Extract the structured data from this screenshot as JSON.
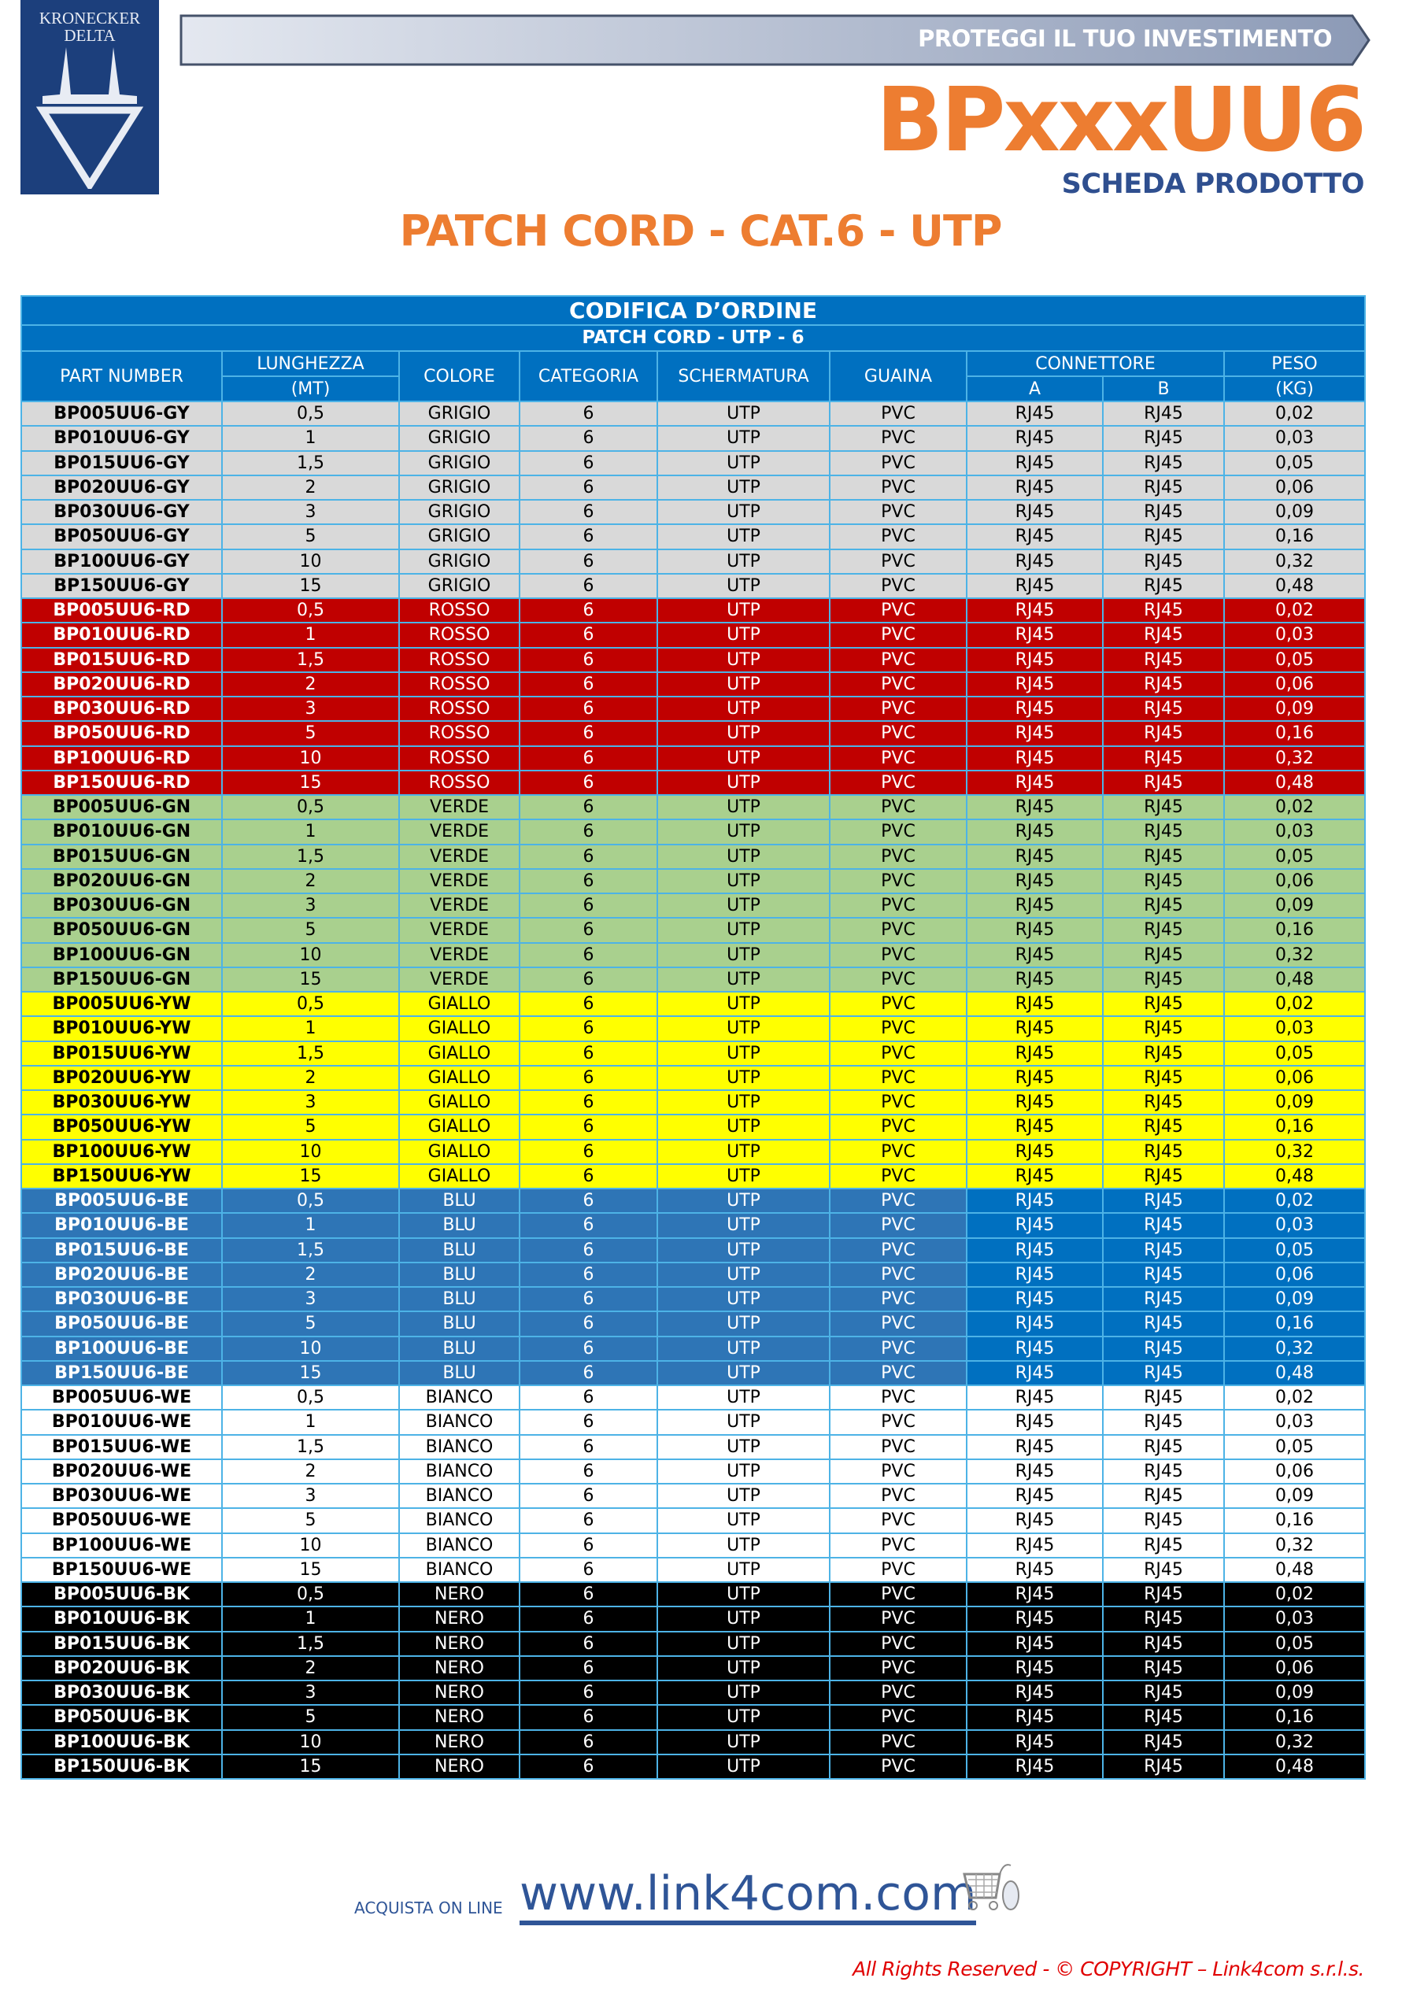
{
  "logo": {
    "line1": "KRONECKER",
    "line2": "DELTA"
  },
  "banner": "PROTEGGI IL TUO INVESTIMENTO",
  "product_code": "BPxxxUU6",
  "subtitle": "SCHEDA PRODOTTO",
  "title": "PATCH CORD - CAT.6 - UTP",
  "table": {
    "caption": "CODIFICA D’ORDINE",
    "subcaption": "PATCH CORD - UTP - 6",
    "headers": {
      "part_number": "PART NUMBER",
      "lunghezza": "LUNGHEZZA",
      "lunghezza_unit": "(MT)",
      "colore": "COLORE",
      "categoria": "CATEGORIA",
      "schermatura": "SCHERMATURA",
      "guaina": "GUAINA",
      "connettore": "CONNETTORE",
      "conn_a": "A",
      "conn_b": "B",
      "peso": "PESO",
      "peso_unit": "(KG)"
    },
    "groups": [
      {
        "colore": "GRIGIO",
        "bg": "#d9d9d9",
        "bg2": "#d9d9d9",
        "fg": "#000000",
        "rows": [
          [
            "BP005UU6-GY",
            "0,5",
            "0,02"
          ],
          [
            "BP010UU6-GY",
            "1",
            "0,03"
          ],
          [
            "BP015UU6-GY",
            "1,5",
            "0,05"
          ],
          [
            "BP020UU6-GY",
            "2",
            "0,06"
          ],
          [
            "BP030UU6-GY",
            "3",
            "0,09"
          ],
          [
            "BP050UU6-GY",
            "5",
            "0,16"
          ],
          [
            "BP100UU6-GY",
            "10",
            "0,32"
          ],
          [
            "BP150UU6-GY",
            "15",
            "0,48"
          ]
        ]
      },
      {
        "colore": "ROSSO",
        "bg": "#c00000",
        "bg2": "#c00000",
        "fg": "#ffffff",
        "rows": [
          [
            "BP005UU6-RD",
            "0,5",
            "0,02"
          ],
          [
            "BP010UU6-RD",
            "1",
            "0,03"
          ],
          [
            "BP015UU6-RD",
            "1,5",
            "0,05"
          ],
          [
            "BP020UU6-RD",
            "2",
            "0,06"
          ],
          [
            "BP030UU6-RD",
            "3",
            "0,09"
          ],
          [
            "BP050UU6-RD",
            "5",
            "0,16"
          ],
          [
            "BP100UU6-RD",
            "10",
            "0,32"
          ],
          [
            "BP150UU6-RD",
            "15",
            "0,48"
          ]
        ]
      },
      {
        "colore": "VERDE",
        "bg": "#a9d08e",
        "bg2": "#a9d08e",
        "fg": "#000000",
        "rows": [
          [
            "BP005UU6-GN",
            "0,5",
            "0,02"
          ],
          [
            "BP010UU6-GN",
            "1",
            "0,03"
          ],
          [
            "BP015UU6-GN",
            "1,5",
            "0,05"
          ],
          [
            "BP020UU6-GN",
            "2",
            "0,06"
          ],
          [
            "BP030UU6-GN",
            "3",
            "0,09"
          ],
          [
            "BP050UU6-GN",
            "5",
            "0,16"
          ],
          [
            "BP100UU6-GN",
            "10",
            "0,32"
          ],
          [
            "BP150UU6-GN",
            "15",
            "0,48"
          ]
        ]
      },
      {
        "colore": "GIALLO",
        "bg": "#ffff00",
        "bg2": "#ffff00",
        "fg": "#000000",
        "rows": [
          [
            "BP005UU6-YW",
            "0,5",
            "0,02"
          ],
          [
            "BP010UU6-YW",
            "1",
            "0,03"
          ],
          [
            "BP015UU6-YW",
            "1,5",
            "0,05"
          ],
          [
            "BP020UU6-YW",
            "2",
            "0,06"
          ],
          [
            "BP030UU6-YW",
            "3",
            "0,09"
          ],
          [
            "BP050UU6-YW",
            "5",
            "0,16"
          ],
          [
            "BP100UU6-YW",
            "10",
            "0,32"
          ],
          [
            "BP150UU6-YW",
            "15",
            "0,48"
          ]
        ]
      },
      {
        "colore": "BLU",
        "bg": "#2e75b6",
        "bg2": "#0070c0",
        "fg": "#ffffff",
        "rows": [
          [
            "BP005UU6-BE",
            "0,5",
            "0,02"
          ],
          [
            "BP010UU6-BE",
            "1",
            "0,03"
          ],
          [
            "BP015UU6-BE",
            "1,5",
            "0,05"
          ],
          [
            "BP020UU6-BE",
            "2",
            "0,06"
          ],
          [
            "BP030UU6-BE",
            "3",
            "0,09"
          ],
          [
            "BP050UU6-BE",
            "5",
            "0,16"
          ],
          [
            "BP100UU6-BE",
            "10",
            "0,32"
          ],
          [
            "BP150UU6-BE",
            "15",
            "0,48"
          ]
        ]
      },
      {
        "colore": "BIANCO",
        "bg": "#ffffff",
        "bg2": "#ffffff",
        "fg": "#000000",
        "rows": [
          [
            "BP005UU6-WE",
            "0,5",
            "0,02"
          ],
          [
            "BP010UU6-WE",
            "1",
            "0,03"
          ],
          [
            "BP015UU6-WE",
            "1,5",
            "0,05"
          ],
          [
            "BP020UU6-WE",
            "2",
            "0,06"
          ],
          [
            "BP030UU6-WE",
            "3",
            "0,09"
          ],
          [
            "BP050UU6-WE",
            "5",
            "0,16"
          ],
          [
            "BP100UU6-WE",
            "10",
            "0,32"
          ],
          [
            "BP150UU6-WE",
            "15",
            "0,48"
          ]
        ]
      },
      {
        "colore": "NERO",
        "bg": "#000000",
        "bg2": "#000000",
        "fg": "#ffffff",
        "rows": [
          [
            "BP005UU6-BK",
            "0,5",
            "0,02"
          ],
          [
            "BP010UU6-BK",
            "1",
            "0,03"
          ],
          [
            "BP015UU6-BK",
            "1,5",
            "0,05"
          ],
          [
            "BP020UU6-BK",
            "2",
            "0,06"
          ],
          [
            "BP030UU6-BK",
            "3",
            "0,09"
          ],
          [
            "BP050UU6-BK",
            "5",
            "0,16"
          ],
          [
            "BP100UU6-BK",
            "10",
            "0,32"
          ],
          [
            "BP150UU6-BK",
            "15",
            "0,48"
          ]
        ]
      }
    ],
    "common": {
      "categoria": "6",
      "schermatura": "UTP",
      "guaina": "PVC",
      "conn_a": "RJ45",
      "conn_b": "RJ45"
    }
  },
  "footer": {
    "buy_label": "ACQUISTA ON LINE",
    "url": "www.link4com.com",
    "copyright": "All Rights Reserved - © COPYRIGHT – Link4com s.r.l.s.",
    "cart_icon": "shopping-cart-mouse-icon"
  }
}
